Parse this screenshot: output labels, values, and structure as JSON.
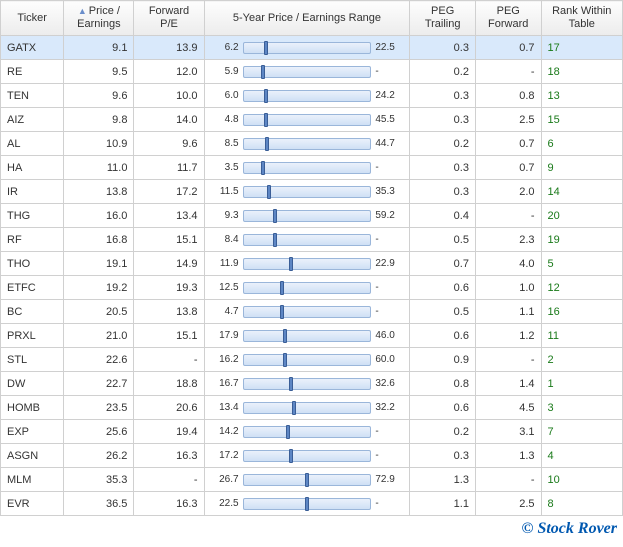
{
  "footer": "© Stock Rover",
  "colors": {
    "rank_text": "#1a7a1a",
    "bar_fill_top": "#eaf1fb",
    "bar_fill_bottom": "#cfe0f5",
    "bar_border": "#9ab6da",
    "marker_fill": "#5d86c4",
    "marker_border": "#3a5e97",
    "selected_row": "#d9e9fb",
    "grid_border": "#d0d0d0"
  },
  "columns": [
    {
      "key": "ticker",
      "label": "Ticker",
      "align": "left",
      "sorted": false
    },
    {
      "key": "pe",
      "label": "Price /\nEarnings",
      "align": "right",
      "sorted": true,
      "sort_dir": "asc"
    },
    {
      "key": "fpe",
      "label": "Forward\nP/E",
      "align": "right"
    },
    {
      "key": "range",
      "label": "5-Year Price / Earnings Range",
      "align": "center"
    },
    {
      "key": "pegt",
      "label": "PEG\nTrailing",
      "align": "right"
    },
    {
      "key": "pegf",
      "label": "PEG\nForward",
      "align": "right"
    },
    {
      "key": "rank",
      "label": "Rank Within\nTable",
      "align": "left"
    }
  ],
  "range_axis": {
    "min": 0,
    "max": 80
  },
  "rows": [
    {
      "ticker": "GATX",
      "pe": "9.1",
      "fpe": "13.9",
      "rmin": "6.2",
      "rmax": "22.5",
      "mark": 14,
      "pegt": "0.3",
      "pegf": "0.7",
      "rank": "17",
      "selected": true
    },
    {
      "ticker": "RE",
      "pe": "9.5",
      "fpe": "12.0",
      "rmin": "5.9",
      "rmax": "-",
      "mark": 12,
      "pegt": "0.2",
      "pegf": "-",
      "rank": "18"
    },
    {
      "ticker": "TEN",
      "pe": "9.6",
      "fpe": "10.0",
      "rmin": "6.0",
      "rmax": "24.2",
      "mark": 14,
      "pegt": "0.3",
      "pegf": "0.8",
      "rank": "13"
    },
    {
      "ticker": "AIZ",
      "pe": "9.8",
      "fpe": "14.0",
      "rmin": "4.8",
      "rmax": "45.5",
      "mark": 14,
      "pegt": "0.3",
      "pegf": "2.5",
      "rank": "15"
    },
    {
      "ticker": "AL",
      "pe": "10.9",
      "fpe": "9.6",
      "rmin": "8.5",
      "rmax": "44.7",
      "mark": 15,
      "pegt": "0.2",
      "pegf": "0.7",
      "rank": "6"
    },
    {
      "ticker": "HA",
      "pe": "11.0",
      "fpe": "11.7",
      "rmin": "3.5",
      "rmax": "-",
      "mark": 12,
      "pegt": "0.3",
      "pegf": "0.7",
      "rank": "9"
    },
    {
      "ticker": "IR",
      "pe": "13.8",
      "fpe": "17.2",
      "rmin": "11.5",
      "rmax": "35.3",
      "mark": 16,
      "pegt": "0.3",
      "pegf": "2.0",
      "rank": "14"
    },
    {
      "ticker": "THG",
      "pe": "16.0",
      "fpe": "13.4",
      "rmin": "9.3",
      "rmax": "59.2",
      "mark": 20,
      "pegt": "0.4",
      "pegf": "-",
      "rank": "20"
    },
    {
      "ticker": "RF",
      "pe": "16.8",
      "fpe": "15.1",
      "rmin": "8.4",
      "rmax": "-",
      "mark": 20,
      "pegt": "0.5",
      "pegf": "2.3",
      "rank": "19"
    },
    {
      "ticker": "THO",
      "pe": "19.1",
      "fpe": "14.9",
      "rmin": "11.9",
      "rmax": "22.9",
      "mark": 30,
      "pegt": "0.7",
      "pegf": "4.0",
      "rank": "5"
    },
    {
      "ticker": "ETFC",
      "pe": "19.2",
      "fpe": "19.3",
      "rmin": "12.5",
      "rmax": "-",
      "mark": 24,
      "pegt": "0.6",
      "pegf": "1.0",
      "rank": "12"
    },
    {
      "ticker": "BC",
      "pe": "20.5",
      "fpe": "13.8",
      "rmin": "4.7",
      "rmax": "-",
      "mark": 24,
      "pegt": "0.5",
      "pegf": "1.1",
      "rank": "16"
    },
    {
      "ticker": "PRXL",
      "pe": "21.0",
      "fpe": "15.1",
      "rmin": "17.9",
      "rmax": "46.0",
      "mark": 26,
      "pegt": "0.6",
      "pegf": "1.2",
      "rank": "11"
    },
    {
      "ticker": "STL",
      "pe": "22.6",
      "fpe": "-",
      "rmin": "16.2",
      "rmax": "60.0",
      "mark": 26,
      "pegt": "0.9",
      "pegf": "-",
      "rank": "2"
    },
    {
      "ticker": "DW",
      "pe": "22.7",
      "fpe": "18.8",
      "rmin": "16.7",
      "rmax": "32.6",
      "mark": 30,
      "pegt": "0.8",
      "pegf": "1.4",
      "rank": "1"
    },
    {
      "ticker": "HOMB",
      "pe": "23.5",
      "fpe": "20.6",
      "rmin": "13.4",
      "rmax": "32.2",
      "mark": 32,
      "pegt": "0.6",
      "pegf": "4.5",
      "rank": "3"
    },
    {
      "ticker": "EXP",
      "pe": "25.6",
      "fpe": "19.4",
      "rmin": "14.2",
      "rmax": "-",
      "mark": 28,
      "pegt": "0.2",
      "pegf": "3.1",
      "rank": "7"
    },
    {
      "ticker": "ASGN",
      "pe": "26.2",
      "fpe": "16.3",
      "rmin": "17.2",
      "rmax": "-",
      "mark": 30,
      "pegt": "0.3",
      "pegf": "1.3",
      "rank": "4"
    },
    {
      "ticker": "MLM",
      "pe": "35.3",
      "fpe": "-",
      "rmin": "26.7",
      "rmax": "72.9",
      "mark": 40,
      "pegt": "1.3",
      "pegf": "-",
      "rank": "10"
    },
    {
      "ticker": "EVR",
      "pe": "36.5",
      "fpe": "16.3",
      "rmin": "22.5",
      "rmax": "-",
      "mark": 40,
      "pegt": "1.1",
      "pegf": "2.5",
      "rank": "8"
    }
  ]
}
